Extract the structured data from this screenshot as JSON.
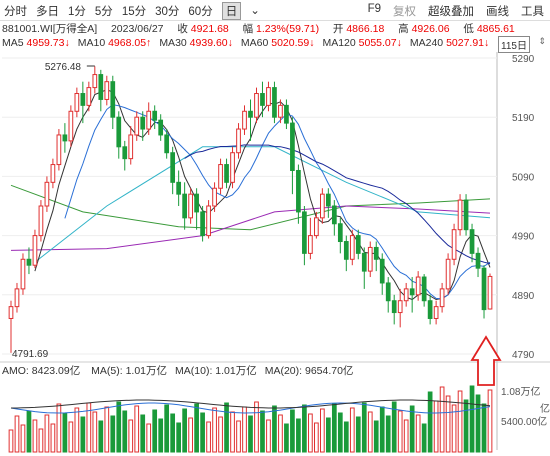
{
  "toolbar": {
    "left_items": [
      "分时",
      "多日",
      "1分",
      "5分",
      "15分",
      "30分",
      "60分",
      "日"
    ],
    "active": "日",
    "right_items": [
      "F9",
      "复权",
      "超级叠加",
      "画线",
      "工具"
    ],
    "chevron": "⌄"
  },
  "info": {
    "code_name": "881001.WI[万得全A]",
    "date": "2023/06/27",
    "close_label": "收",
    "close_value": "4921.68",
    "change_label": "幅",
    "change_value": "1.23%(59.71)",
    "open_label": "开",
    "open_value": "4866.18",
    "high_label": "高",
    "high_value": "4926.06",
    "low_label": "低",
    "low_value": "4865.61"
  },
  "ma": [
    {
      "label": "MA5",
      "value": "4959.73↓",
      "color": "#333333"
    },
    {
      "label": "MA10",
      "value": "4968.05↑",
      "color": "#2a6fd6"
    },
    {
      "label": "MA30",
      "value": "4939.60↓",
      "color": "#1a2a9a"
    },
    {
      "label": "MA60",
      "value": "5020.59↓",
      "color": "#32b4c8"
    },
    {
      "label": "MA120",
      "value": "5055.07↓",
      "color": "#3a9a3a"
    },
    {
      "label": "MA240",
      "value": "5027.91↓",
      "color": "#9a2ab4"
    }
  ],
  "period_box": "115日",
  "chart_data": {
    "type": "candlestick",
    "y_ticks": [
      "5290",
      "5190",
      "5090",
      "4990",
      "4890",
      "4790"
    ],
    "high_annotation": "5276.48",
    "low_annotation": "4791.69",
    "candles": [
      [
        4850,
        4870,
        4792,
        4880
      ],
      [
        4870,
        4900,
        4860,
        4910
      ],
      [
        4900,
        4950,
        4890,
        4960
      ],
      [
        4950,
        4940,
        4925,
        4970
      ],
      [
        4940,
        4990,
        4935,
        5000
      ],
      [
        4990,
        5040,
        4980,
        5050
      ],
      [
        5040,
        5080,
        5030,
        5090
      ],
      [
        5080,
        5110,
        5070,
        5120
      ],
      [
        5110,
        5160,
        5100,
        5170
      ],
      [
        5160,
        5150,
        5130,
        5180
      ],
      [
        5150,
        5200,
        5140,
        5210
      ],
      [
        5200,
        5230,
        5190,
        5240
      ],
      [
        5230,
        5210,
        5180,
        5250
      ],
      [
        5210,
        5240,
        5200,
        5250
      ],
      [
        5240,
        5262,
        5230,
        5276
      ],
      [
        5262,
        5220,
        5200,
        5270
      ],
      [
        5220,
        5250,
        5210,
        5260
      ],
      [
        5250,
        5190,
        5170,
        5260
      ],
      [
        5190,
        5140,
        5120,
        5200
      ],
      [
        5140,
        5120,
        5100,
        5150
      ],
      [
        5120,
        5160,
        5110,
        5175
      ],
      [
        5160,
        5190,
        5150,
        5200
      ],
      [
        5190,
        5170,
        5150,
        5200
      ],
      [
        5170,
        5200,
        5160,
        5215
      ],
      [
        5200,
        5185,
        5170,
        5210
      ],
      [
        5185,
        5160,
        5150,
        5195
      ],
      [
        5160,
        5130,
        5120,
        5170
      ],
      [
        5130,
        5080,
        5060,
        5140
      ],
      [
        5080,
        5060,
        5040,
        5100
      ],
      [
        5060,
        5020,
        5000,
        5080
      ],
      [
        5020,
        5060,
        5010,
        5070
      ],
      [
        5060,
        5030,
        5000,
        5070
      ],
      [
        5030,
        4990,
        4980,
        5040
      ],
      [
        4990,
        5040,
        4985,
        5050
      ],
      [
        5040,
        5070,
        5030,
        5080
      ],
      [
        5070,
        5110,
        5060,
        5120
      ],
      [
        5110,
        5080,
        5070,
        5120
      ],
      [
        5080,
        5130,
        5070,
        5140
      ],
      [
        5130,
        5170,
        5120,
        5180
      ],
      [
        5170,
        5200,
        5160,
        5210
      ],
      [
        5200,
        5190,
        5150,
        5220
      ],
      [
        5190,
        5230,
        5180,
        5240
      ],
      [
        5230,
        5210,
        5190,
        5250
      ],
      [
        5210,
        5240,
        5200,
        5250
      ],
      [
        5240,
        5190,
        5180,
        5250
      ],
      [
        5190,
        5210,
        5180,
        5220
      ],
      [
        5210,
        5180,
        5170,
        5220
      ],
      [
        5180,
        5100,
        5060,
        5190
      ],
      [
        5100,
        5030,
        5010,
        5110
      ],
      [
        5030,
        4960,
        4940,
        5040
      ],
      [
        4960,
        4990,
        4950,
        5020
      ],
      [
        4990,
        5020,
        4985,
        5030
      ],
      [
        5020,
        5060,
        5010,
        5070
      ],
      [
        5060,
        5040,
        5020,
        5070
      ],
      [
        5040,
        5010,
        4990,
        5050
      ],
      [
        5010,
        4980,
        4960,
        5020
      ],
      [
        4980,
        4950,
        4930,
        4990
      ],
      [
        4950,
        4990,
        4940,
        5000
      ],
      [
        4990,
        4960,
        4950,
        5000
      ],
      [
        4960,
        4930,
        4900,
        4970
      ],
      [
        4930,
        4970,
        4920,
        4980
      ],
      [
        4970,
        4950,
        4930,
        4980
      ],
      [
        4950,
        4910,
        4890,
        4960
      ],
      [
        4910,
        4880,
        4860,
        4920
      ],
      [
        4880,
        4860,
        4840,
        4890
      ],
      [
        4860,
        4880,
        4835,
        4900
      ],
      [
        4880,
        4900,
        4870,
        4910
      ],
      [
        4900,
        4890,
        4860,
        4920
      ],
      [
        4890,
        4920,
        4880,
        4930
      ],
      [
        4920,
        4880,
        4870,
        4925
      ],
      [
        4880,
        4850,
        4840,
        4890
      ],
      [
        4850,
        4870,
        4840,
        4880
      ],
      [
        4870,
        4900,
        4860,
        4910
      ],
      [
        4900,
        4950,
        4890,
        4960
      ],
      [
        4950,
        5000,
        4940,
        5010
      ],
      [
        5000,
        5050,
        4990,
        5060
      ],
      [
        5050,
        5000,
        4990,
        5060
      ],
      [
        5000,
        4960,
        4945,
        5010
      ],
      [
        4960,
        4935,
        4920,
        4970
      ],
      [
        4935,
        4865,
        4850,
        4940
      ],
      [
        4866,
        4921,
        4865,
        4926
      ]
    ],
    "amo_title": "AMO",
    "amo_value": "8423.09亿",
    "amo_ma": [
      {
        "label": "MA(5)",
        "value": "1.01万亿",
        "color": "#333333"
      },
      {
        "label": "MA(10)",
        "value": "1.01万亿",
        "color": "#2a6fd6"
      },
      {
        "label": "MA(20)",
        "value": "9654.70亿",
        "color": "#1a2a9a"
      }
    ],
    "amo_ticks": [
      "1.08万亿",
      "5400.00亿"
    ],
    "amo_unit": "亿"
  }
}
